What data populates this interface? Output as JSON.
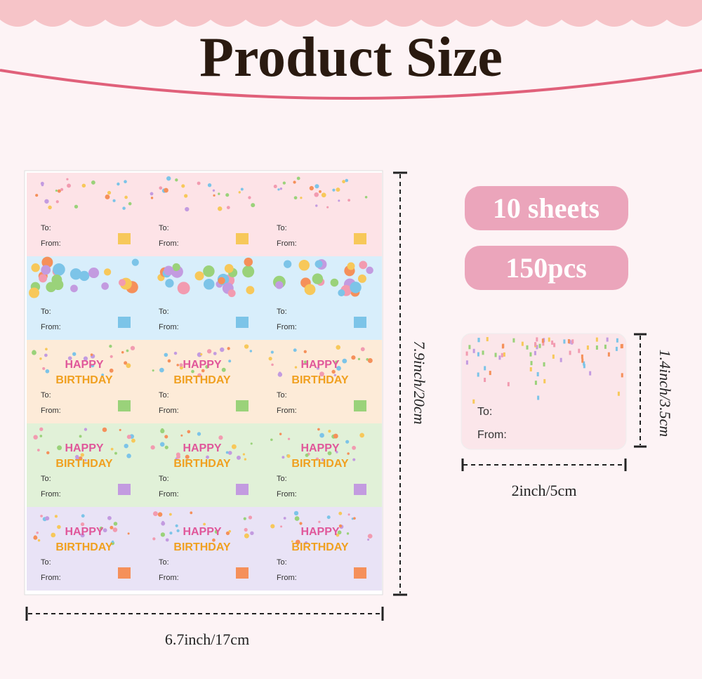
{
  "header": {
    "title": "Product Size"
  },
  "badges": [
    "10 sheets",
    "150pcs"
  ],
  "dimensions": {
    "sheet_height": "7.9inch/20cm",
    "sheet_width": "6.7inch/17cm",
    "label_height": "1.4inch/3.5cm",
    "label_width": "2inch/5cm"
  },
  "sheet": {
    "rows": [
      {
        "labels": [
          {
            "to": "To:",
            "from": "From:"
          },
          {
            "to": "To:",
            "from": "From:"
          },
          {
            "to": "To:",
            "from": "From:"
          }
        ]
      },
      {
        "labels": [
          {
            "to": "To:",
            "from": "From:"
          },
          {
            "to": "To:",
            "from": "From:"
          },
          {
            "to": "To:",
            "from": "From:"
          }
        ]
      },
      {
        "labels": [
          {
            "greeting_top": "HAPPY",
            "greeting_bottom": "BIRTHDAY",
            "to": "To:",
            "from": "From:"
          },
          {
            "greeting_top": "HAPPY",
            "greeting_bottom": "BIRTHDAY",
            "to": "To:",
            "from": "From:"
          },
          {
            "greeting_top": "HAPPY",
            "greeting_bottom": "BIRTHDAY",
            "to": "To:",
            "from": "From:"
          }
        ]
      },
      {
        "labels": [
          {
            "greeting_top": "HAPPY",
            "greeting_bottom": "BIRTHDAY",
            "to": "To:",
            "from": "From:"
          },
          {
            "greeting_top": "HAPPY",
            "greeting_bottom": "BIRTHDAY",
            "to": "To:",
            "from": "From:"
          },
          {
            "greeting_top": "HAPPY",
            "greeting_bottom": "BIRTHDAY",
            "to": "To:",
            "from": "From:"
          }
        ]
      },
      {
        "labels": [
          {
            "greeting_top": "HAPPY",
            "greeting_bottom": "BIRTHDAY",
            "to": "To:",
            "from": "From:"
          },
          {
            "greeting_top": "HAPPY",
            "greeting_bottom": "BIRTHDAY",
            "to": "To:",
            "from": "From:"
          },
          {
            "greeting_top": "HAPPY",
            "greeting_bottom": "BIRTHDAY",
            "to": "To:",
            "from": "From:"
          }
        ]
      }
    ]
  },
  "sample_label": {
    "to": "To:",
    "from": "From:"
  }
}
